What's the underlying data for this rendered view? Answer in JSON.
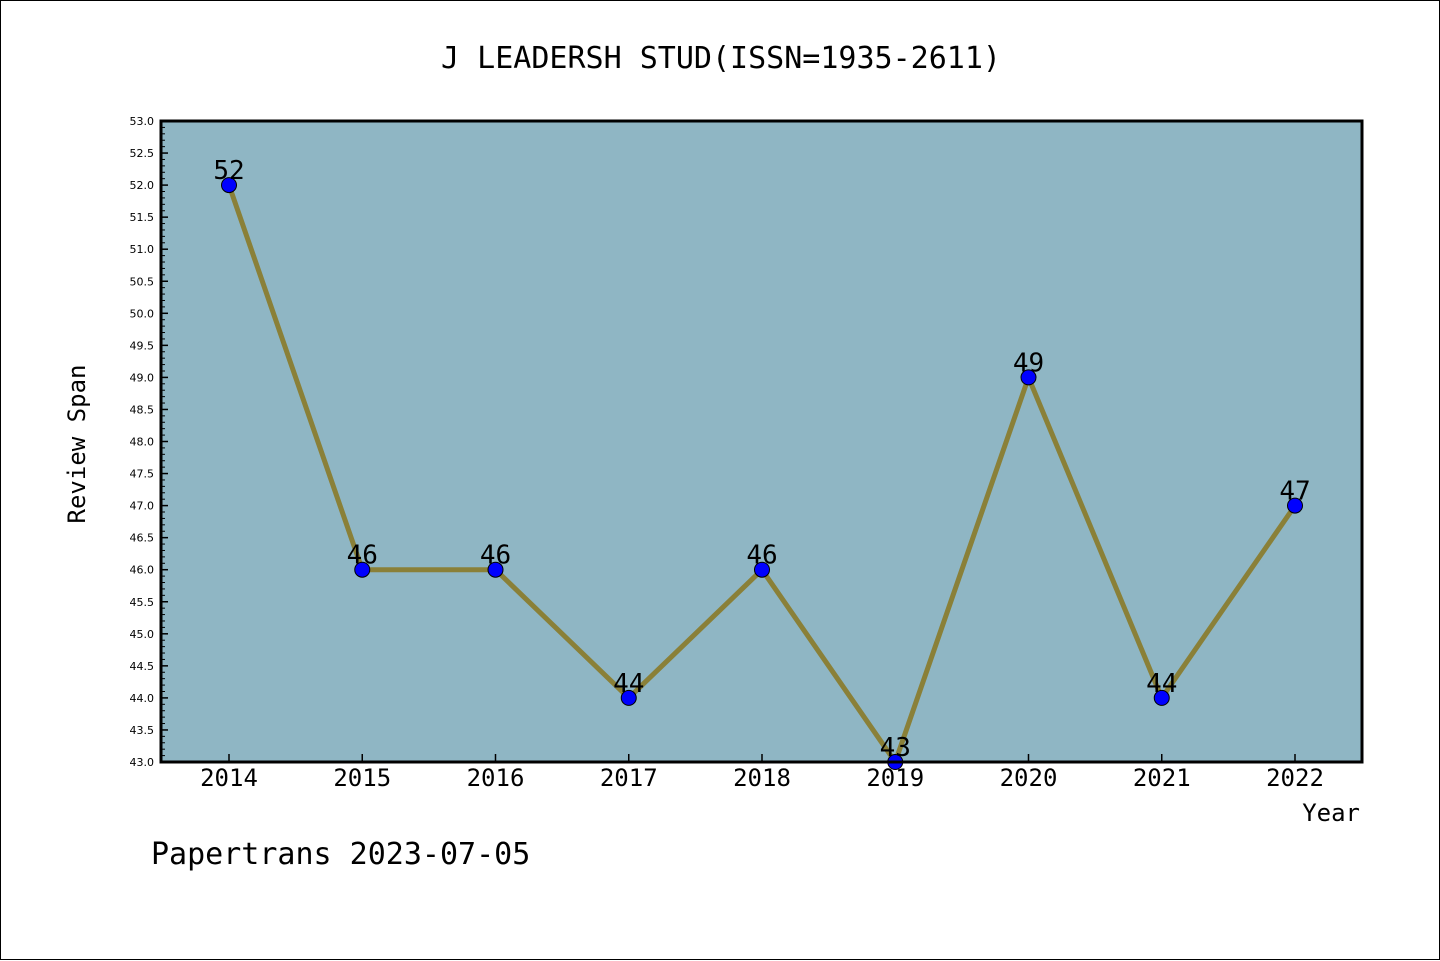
{
  "chart_data": {
    "type": "line",
    "title": "J LEADERSH STUD(ISSN=1935-2611)",
    "xlabel": "Year",
    "ylabel": "Review Span",
    "categories": [
      "2014",
      "2015",
      "2016",
      "2017",
      "2018",
      "2019",
      "2020",
      "2021",
      "2022"
    ],
    "series": [
      {
        "values": [
          52,
          46,
          46,
          44,
          46,
          43,
          49,
          44,
          47
        ]
      }
    ],
    "data_labels": [
      "52",
      "46",
      "46",
      "44",
      "46",
      "43",
      "49",
      "44",
      "47"
    ],
    "ylim": [
      43.0,
      53.0
    ],
    "ytick_step": 0.5,
    "grid": false,
    "legend": "none",
    "colors": {
      "plot_background": "#8fb6c4",
      "line": "#8a8038",
      "marker": "#0000ff"
    }
  },
  "footer": {
    "text": "Papertrans 2023-07-05"
  }
}
